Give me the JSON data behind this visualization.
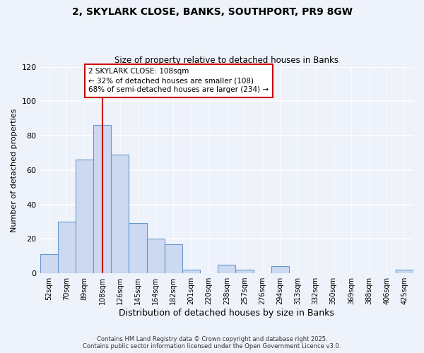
{
  "title_line1": "2, SKYLARK CLOSE, BANKS, SOUTHPORT, PR9 8GW",
  "title_line2": "Size of property relative to detached houses in Banks",
  "xlabel": "Distribution of detached houses by size in Banks",
  "ylabel": "Number of detached properties",
  "bar_labels": [
    "52sqm",
    "70sqm",
    "89sqm",
    "108sqm",
    "126sqm",
    "145sqm",
    "164sqm",
    "182sqm",
    "201sqm",
    "220sqm",
    "238sqm",
    "257sqm",
    "276sqm",
    "294sqm",
    "313sqm",
    "332sqm",
    "350sqm",
    "369sqm",
    "388sqm",
    "406sqm",
    "425sqm"
  ],
  "bar_values": [
    11,
    30,
    66,
    86,
    69,
    29,
    20,
    17,
    2,
    0,
    5,
    2,
    0,
    4,
    0,
    0,
    0,
    0,
    0,
    0,
    2
  ],
  "bar_color": "#ccd9f0",
  "bar_edge_color": "#6699cc",
  "vline_x_index": 3,
  "vline_color": "#cc0000",
  "annotation_line1": "2 SKYLARK CLOSE: 108sqm",
  "annotation_line2": "← 32% of detached houses are smaller (108)",
  "annotation_line3": "68% of semi-detached houses are larger (234) →",
  "ylim": [
    0,
    120
  ],
  "yticks": [
    0,
    20,
    40,
    60,
    80,
    100,
    120
  ],
  "footer_line1": "Contains HM Land Registry data © Crown copyright and database right 2025.",
  "footer_line2": "Contains public sector information licensed under the Open Government Licence v3.0.",
  "background_color": "#eef2fa"
}
